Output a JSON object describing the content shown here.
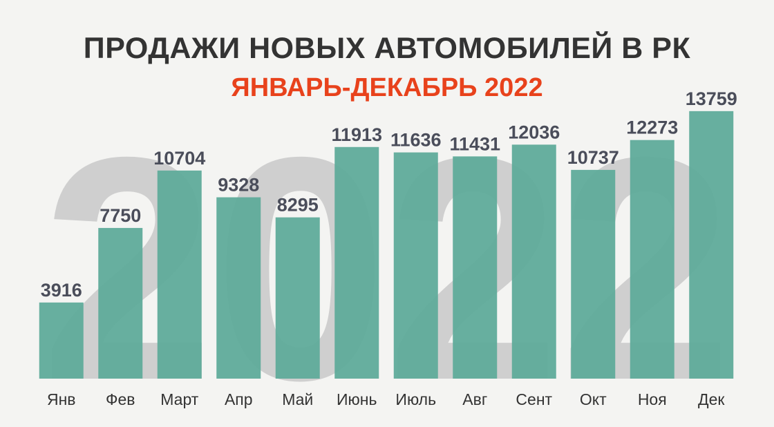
{
  "colors": {
    "bar": "#5fab9a",
    "title": "#333333",
    "subtitle": "#e8421c",
    "value_label": "#4a4d5a",
    "tick_label": "#333333",
    "watermark": "#cfcfcf",
    "background": "#f4f4f2"
  },
  "watermark": {
    "text": "2022"
  },
  "chart_data": {
    "type": "bar",
    "title": "ПРОДАЖИ НОВЫХ АВТОМОБИЛЕЙ В РК",
    "subtitle": "ЯНВАРЬ-ДЕКАБРЬ 2022",
    "xlabel": "",
    "ylabel": "",
    "grid": false,
    "legend": "none",
    "ylim": [
      0,
      14500
    ],
    "categories": [
      "Янв",
      "Фев",
      "Март",
      "Апр",
      "Май",
      "Июнь",
      "Июль",
      "Авг",
      "Сент",
      "Окт",
      "Ноя",
      "Дек"
    ],
    "values": [
      3916,
      7750,
      10704,
      9328,
      8295,
      11913,
      11636,
      11431,
      12036,
      10737,
      12273,
      13759
    ]
  }
}
